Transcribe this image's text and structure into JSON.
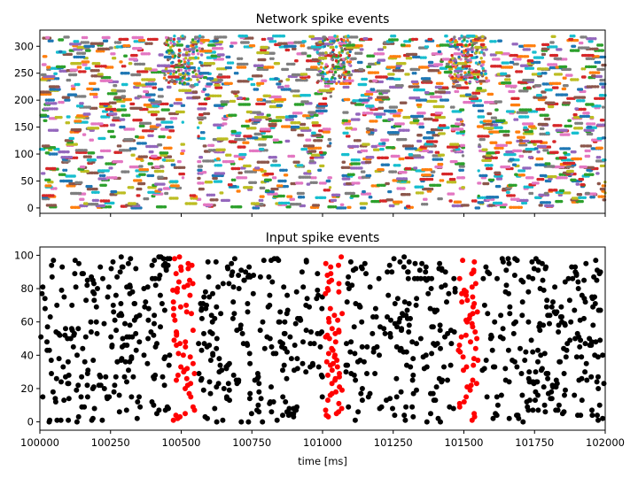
{
  "chart_data": [
    {
      "type": "scatter",
      "title": "Network spike events",
      "xlabel": "",
      "ylabel": "",
      "xlim": [
        100000,
        102000
      ],
      "ylim": [
        -10,
        330
      ],
      "x_ticks": [
        100000,
        100250,
        100500,
        100750,
        101000,
        101250,
        101500,
        101750,
        102000
      ],
      "x_tick_labels_visible": false,
      "y_ticks": [
        0,
        50,
        100,
        150,
        200,
        250,
        300
      ],
      "y_tick_labels": [
        "0",
        "50",
        "100",
        "150",
        "200",
        "250",
        "300"
      ],
      "neuron_count": 320,
      "marker": "small colored dots, color cycles per neuron (tab10)",
      "colors": [
        "#1f77b4",
        "#ff7f0e",
        "#2ca02c",
        "#d62728",
        "#9467bd",
        "#8c564b",
        "#e377c2",
        "#7f7f7f",
        "#bcbd22",
        "#17becf"
      ],
      "pattern_windows_ms": [
        [
          100460,
          100560
        ],
        [
          101000,
          101080
        ],
        [
          101470,
          101560
        ]
      ],
      "quiet_gaps": [
        {
          "x": [
            100510,
            100560
          ],
          "y": [
            30,
            200
          ]
        },
        {
          "x": [
            101030,
            101070
          ],
          "y": [
            25,
            215
          ]
        },
        {
          "x": [
            101500,
            101550
          ],
          "y": [
            20,
            185
          ]
        }
      ],
      "grid": false
    },
    {
      "type": "scatter",
      "title": "Input spike events",
      "xlabel": "time [ms]",
      "ylabel": "",
      "xlim": [
        100000,
        102000
      ],
      "ylim": [
        -5,
        105
      ],
      "x_ticks": [
        100000,
        100250,
        100500,
        100750,
        101000,
        101250,
        101500,
        101750,
        102000
      ],
      "x_tick_labels": [
        "100000",
        "100250",
        "100500",
        "100750",
        "101000",
        "101250",
        "101500",
        "101750",
        "102000"
      ],
      "y_ticks": [
        0,
        20,
        40,
        60,
        80,
        100
      ],
      "y_tick_labels": [
        "0",
        "20",
        "40",
        "60",
        "80",
        "100"
      ],
      "input_count": 100,
      "series": [
        {
          "color": "#000000",
          "marker": "dot"
        },
        {
          "color": "#ff0000",
          "marker": "dot",
          "pattern_windows_ms": [
            [
              100460,
              100560
            ],
            [
              101000,
              101080
            ],
            [
              101470,
              101560
            ]
          ]
        }
      ],
      "grid": false
    }
  ]
}
